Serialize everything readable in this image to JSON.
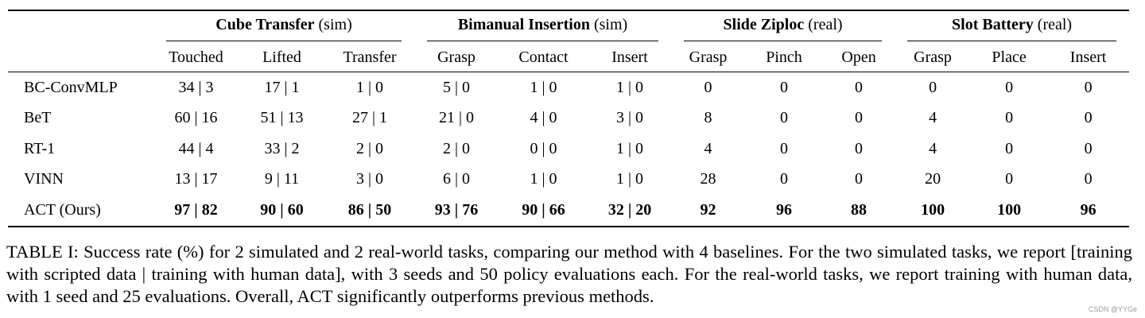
{
  "table": {
    "groups": [
      {
        "name": "Cube Transfer",
        "tag": "(sim)"
      },
      {
        "name": "Bimanual Insertion",
        "tag": "(sim)"
      },
      {
        "name": "Slide Ziploc",
        "tag": "(real)"
      },
      {
        "name": "Slot Battery",
        "tag": "(real)"
      }
    ],
    "subheaders": [
      "Touched",
      "Lifted",
      "Transfer",
      "Grasp",
      "Contact",
      "Insert",
      "Grasp",
      "Pinch",
      "Open",
      "Grasp",
      "Place",
      "Insert"
    ],
    "rows": [
      {
        "method": "BC-ConvMLP",
        "values": [
          "34 | 3",
          "17 | 1",
          "1 | 0",
          "5 | 0",
          "1 | 0",
          "1 | 0",
          "0",
          "0",
          "0",
          "0",
          "0",
          "0"
        ]
      },
      {
        "method": "BeT",
        "values": [
          "60 | 16",
          "51 | 13",
          "27 | 1",
          "21 | 0",
          "4 | 0",
          "3 | 0",
          "8",
          "0",
          "0",
          "4",
          "0",
          "0"
        ]
      },
      {
        "method": "RT-1",
        "values": [
          "44 | 4",
          "33 | 2",
          "2 | 0",
          "2 | 0",
          "0 | 0",
          "1 | 0",
          "4",
          "0",
          "0",
          "4",
          "0",
          "0"
        ]
      },
      {
        "method": "VINN",
        "values": [
          "13 | 17",
          "9 | 11",
          "3 | 0",
          "6 | 0",
          "1 | 0",
          "1 | 0",
          "28",
          "0",
          "0",
          "20",
          "0",
          "0"
        ]
      },
      {
        "method": "ACT (Ours)",
        "values": [
          "97 | 82",
          "90 | 60",
          "86 | 50",
          "93 | 76",
          "90 | 66",
          "32 | 20",
          "92",
          "96",
          "88",
          "100",
          "100",
          "96"
        ]
      }
    ]
  },
  "caption": {
    "label": "TABLE I:",
    "text": "Success rate (%) for 2 simulated and 2 real-world tasks, comparing our method with 4 baselines. For the two simulated tasks, we report [training with scripted data | training with human data], with 3 seeds and 50 policy evaluations each. For the real-world tasks, we report training with human data, with 1 seed and 25 evaluations. Overall, ACT significantly outperforms previous methods."
  },
  "watermark": "CSDN @YYGe"
}
